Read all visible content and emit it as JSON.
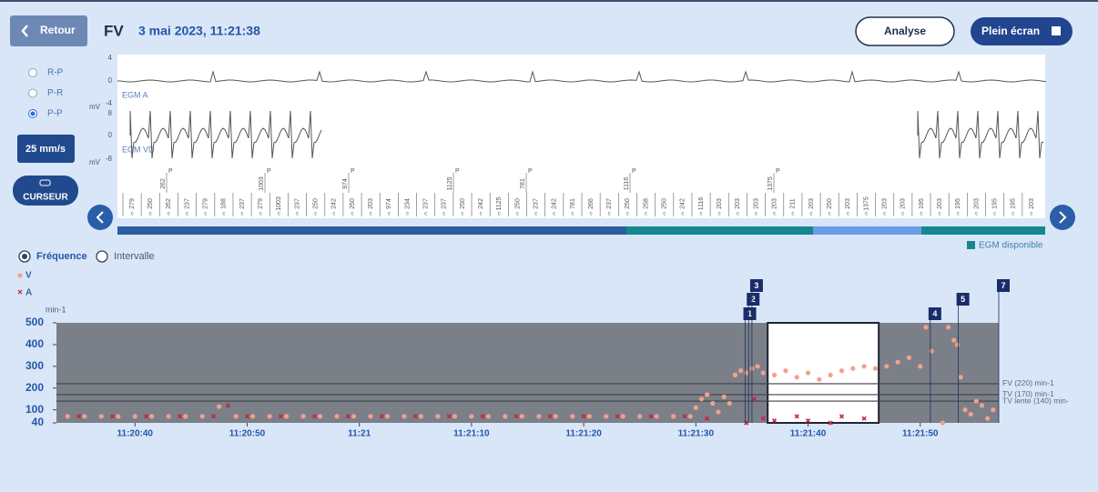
{
  "header": {
    "back": "Retour",
    "episode": "FV",
    "date": "3 mai 2023, 11:21:38",
    "analyse": "Analyse",
    "fullscreen": "Plein écran"
  },
  "controls": {
    "radios": [
      "R-P",
      "P-R",
      "P-P"
    ],
    "selected": 2,
    "speed": "25 mm/s",
    "cursor": "CURSEUR"
  },
  "egm": {
    "channels": [
      {
        "name": "EGM A",
        "ticks": [
          "4",
          "0",
          "-4"
        ]
      },
      {
        "name": "EGM VD",
        "ticks": [
          "8",
          "0",
          "-8"
        ]
      }
    ],
    "unit": "mV",
    "intervals": [
      "279",
      "250",
      "262",
      "237",
      "279",
      "188",
      "237",
      "279",
      "1003",
      "237",
      "250",
      "242",
      "250",
      "203",
      "974",
      "234",
      "237",
      "237",
      "250",
      "242",
      "1125",
      "250",
      "237",
      "242",
      "781",
      "266",
      "237",
      "250",
      "258",
      "250",
      "242",
      "1116",
      "203",
      "203",
      "203",
      "203",
      "211",
      "203",
      "250",
      "203",
      "1375",
      "203",
      "203",
      "195",
      "203",
      "195",
      "203",
      "195",
      "195",
      "203"
    ],
    "p_values": [
      "262",
      "1003",
      "974",
      "1125",
      "781",
      "1116",
      "1375"
    ],
    "p_label": "P",
    "sub": "c",
    "available": "EGM disponible"
  },
  "view": {
    "options": [
      "Fréquence",
      "Intervalle"
    ],
    "selected": 0
  },
  "chart_data": {
    "type": "scatter",
    "y_label": "min-1",
    "xlim": [
      40833,
      40917
    ],
    "ylim": [
      40,
      500
    ],
    "xticks": [
      {
        "value": 40840,
        "label": "11:20:40"
      },
      {
        "value": 40850,
        "label": "11:20:50"
      },
      {
        "value": 40860,
        "label": "11:21"
      },
      {
        "value": 40870,
        "label": "11:21:10"
      },
      {
        "value": 40880,
        "label": "11:21:20"
      },
      {
        "value": 40890,
        "label": "11:21:30"
      },
      {
        "value": 40900,
        "label": "11:21:40"
      },
      {
        "value": 40910,
        "label": "11:21:50"
      }
    ],
    "yticks": [
      40,
      100,
      200,
      300,
      400,
      500
    ],
    "thresholds": [
      {
        "value": 220,
        "label": "FV (220) min-1"
      },
      {
        "value": 170,
        "label": "TV (170) min-1"
      },
      {
        "value": 140,
        "label": "TV lente (140) min-"
      }
    ],
    "window": [
      40896.4,
      40906.3
    ],
    "events": [
      {
        "label": "1",
        "x": 40894.4
      },
      {
        "label": "2",
        "x": 40894.7
      },
      {
        "label": "3",
        "x": 40895
      },
      {
        "label": "4",
        "x": 40910.9
      },
      {
        "label": "5",
        "x": 40913.4
      },
      {
        "label": "7",
        "x": 40917
      }
    ],
    "series": [
      {
        "name": "V",
        "color": "#f3a08d",
        "marker": "dot",
        "x": [
          40834,
          40835.5,
          40837,
          40838.5,
          40840,
          40841.5,
          40843,
          40844.5,
          40846,
          40847.5,
          40849,
          40850.5,
          40852,
          40853.5,
          40855,
          40856.5,
          40858,
          40859.5,
          40861,
          40862.5,
          40864,
          40865.5,
          40867,
          40868.5,
          40870,
          40871.5,
          40873,
          40874.5,
          40876,
          40877.5,
          40879,
          40880.5,
          40882,
          40883.5,
          40885,
          40886.5,
          40888,
          40889.5,
          40890,
          40890.5,
          40891,
          40891.5,
          40892,
          40892.5,
          40893,
          40893.5,
          40894,
          40894.5,
          40895,
          40895.5,
          40896,
          40897,
          40898,
          40899,
          40900,
          40901,
          40902,
          40903,
          40904,
          40905,
          40906,
          40907,
          40908,
          40909,
          40910,
          40910.5,
          40911,
          40912,
          40912.5,
          40913,
          40913.3,
          40913.6,
          40914,
          40914.5,
          40915,
          40915.5,
          40916,
          40916.5
        ],
        "values": [
          70,
          70,
          70,
          70,
          70,
          70,
          70,
          70,
          70,
          115,
          70,
          70,
          70,
          70,
          70,
          70,
          70,
          70,
          70,
          70,
          70,
          70,
          70,
          70,
          70,
          70,
          70,
          70,
          70,
          70,
          70,
          70,
          70,
          70,
          70,
          70,
          70,
          70,
          110,
          150,
          170,
          130,
          90,
          160,
          130,
          260,
          280,
          270,
          290,
          300,
          270,
          260,
          280,
          250,
          270,
          240,
          260,
          280,
          290,
          300,
          290,
          300,
          320,
          340,
          300,
          480,
          370,
          40,
          480,
          420,
          400,
          250,
          100,
          80,
          140,
          120,
          60,
          100
        ]
      },
      {
        "name": "A",
        "color": "#c0264a",
        "marker": "cross",
        "x": [
          40835,
          40838,
          40841,
          40844,
          40847,
          40848.3,
          40850,
          40853,
          40856,
          40859,
          40862,
          40865,
          40868,
          40871,
          40874,
          40877,
          40880,
          40883,
          40886,
          40889,
          40891,
          40894.5,
          40895.2,
          40896,
          40897,
          40899,
          40900,
          40902,
          40903,
          40905
        ],
        "values": [
          70,
          70,
          70,
          70,
          70,
          120,
          70,
          70,
          70,
          70,
          70,
          70,
          70,
          70,
          70,
          70,
          70,
          70,
          70,
          70,
          60,
          40,
          150,
          60,
          50,
          70,
          50,
          40,
          70,
          60
        ]
      }
    ]
  }
}
